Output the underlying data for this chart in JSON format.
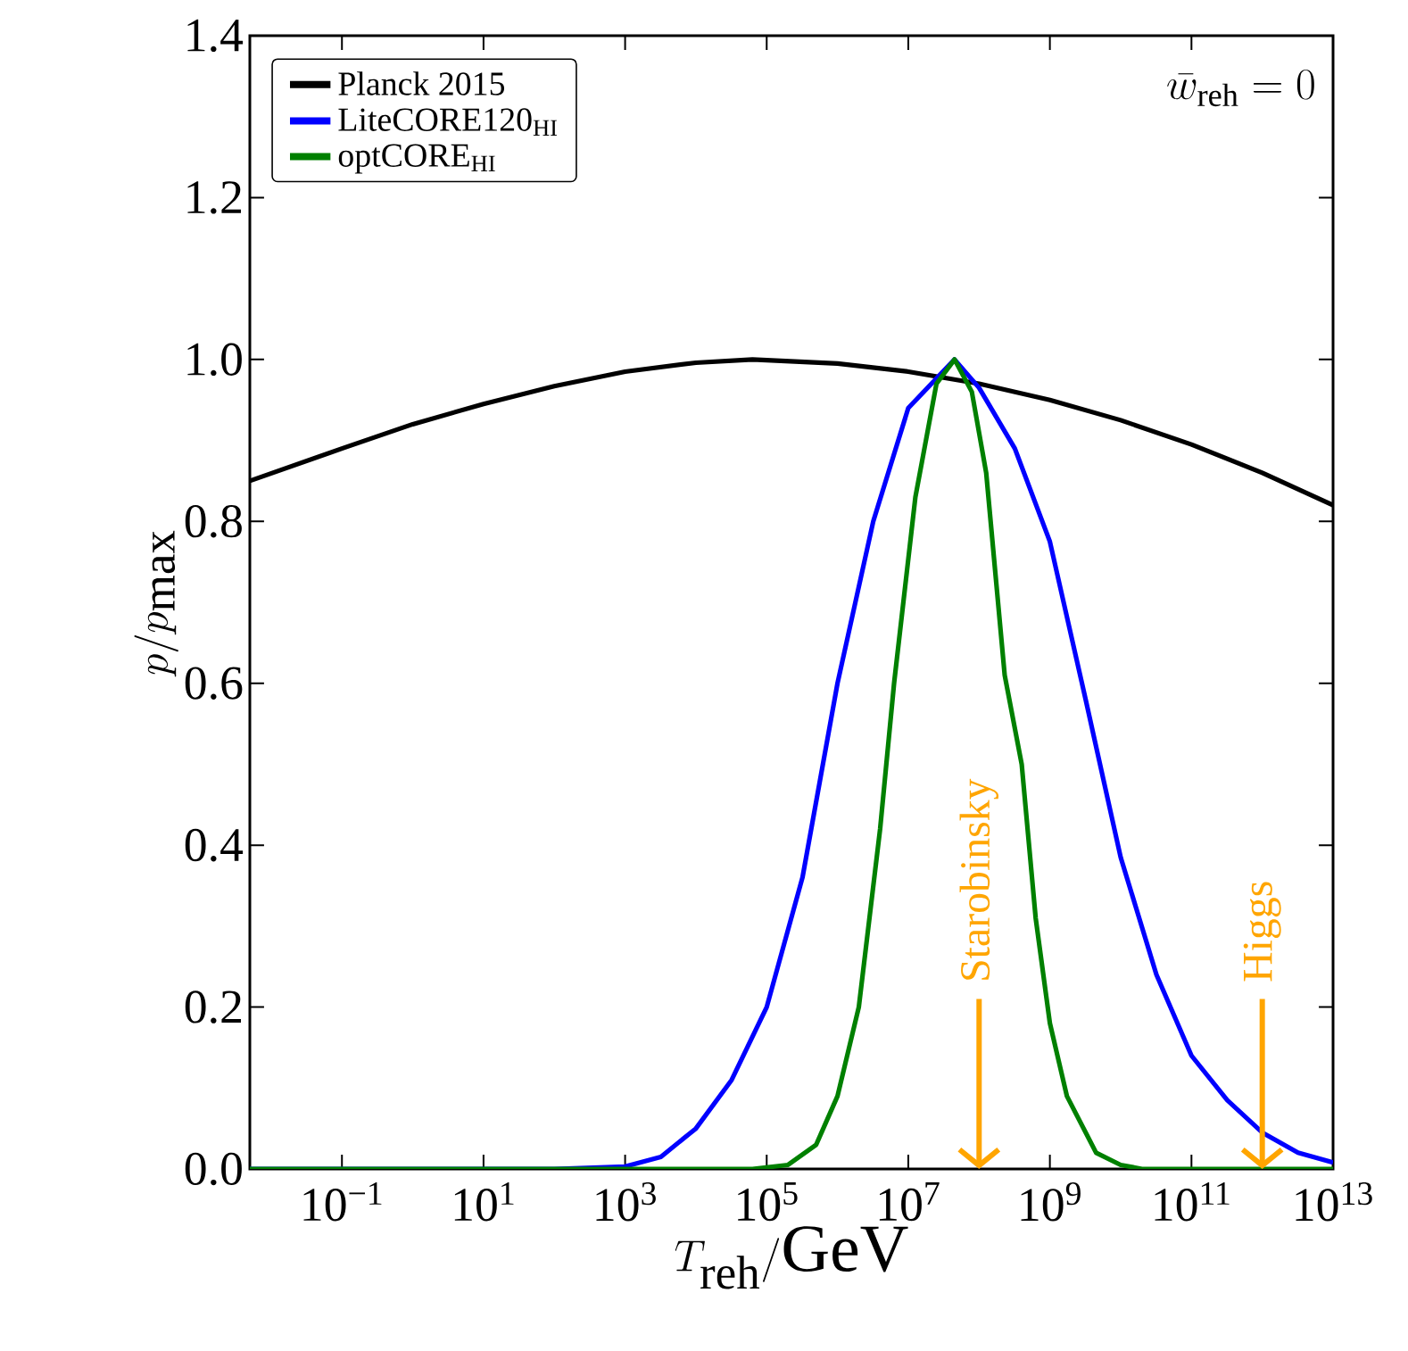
{
  "chart_data": {
    "type": "line",
    "xlabel": "T_{\\mathrm{reh}}/\\mathrm{GeV}",
    "ylabel": "p/p_{\\max}",
    "log": "x",
    "xlim": [
      0.005,
      10000000000000.0
    ],
    "ylim": [
      0,
      1.4
    ],
    "xticks": [
      {
        "value": 0.1,
        "label": "10$^{−1}$"
      },
      {
        "value": 10,
        "label": "10$^{1}$"
      },
      {
        "value": 1000,
        "label": "10$^{3}$"
      },
      {
        "value": 100000.0,
        "label": "10$^{5}$"
      },
      {
        "value": 10000000.0,
        "label": "10$^{7}$"
      },
      {
        "value": 1000000000.0,
        "label": "10$^{9}$"
      },
      {
        "value": 100000000000.0,
        "label": "10$^{11}$"
      },
      {
        "value": 10000000000000.0,
        "label": "10$^{13}$"
      }
    ],
    "yticks": [
      {
        "value": 0,
        "label": "0.0"
      },
      {
        "value": 0.2,
        "label": "0.2"
      },
      {
        "value": 0.4,
        "label": "0.4"
      },
      {
        "value": 0.6,
        "label": "0.6"
      },
      {
        "value": 0.8,
        "label": "0.8"
      },
      {
        "value": 1.0,
        "label": "1.0"
      },
      {
        "value": 1.2,
        "label": "1.2"
      },
      {
        "value": 1.4,
        "label": "1.4"
      }
    ],
    "legend": "top left",
    "marker": "none",
    "line_style": "solid",
    "series": [
      {
        "name": "Planck 2015",
        "color": "#000000",
        "x": [
          0.005,
          0.1,
          1,
          10,
          100,
          1000,
          10000,
          63000,
          1000000.0,
          10000000.0,
          100000000.0,
          1000000000.0,
          10000000000.0,
          100000000000.0,
          1000000000000.0,
          10000000000000.0
        ],
        "values": [
          0.85,
          0.89,
          0.92,
          0.945,
          0.967,
          0.985,
          0.996,
          1.0,
          0.995,
          0.985,
          0.97,
          0.95,
          0.925,
          0.895,
          0.86,
          0.82
        ]
      },
      {
        "name": "LiteCORE120$_{HI}$",
        "color": "#0000ff",
        "x": [
          0.005,
          100,
          1000,
          3200,
          10000,
          32000,
          100000.0,
          320000.0,
          1000000.0,
          3200000.0,
          10000000.0,
          45000000.0,
          100000000.0,
          320000000.0,
          1000000000.0,
          3200000000.0,
          10000000000.0,
          32000000000.0,
          100000000000.0,
          320000000000.0,
          1000000000000.0,
          3200000000000.0,
          10000000000000.0
        ],
        "values": [
          0,
          0,
          0.003,
          0.015,
          0.05,
          0.11,
          0.2,
          0.36,
          0.6,
          0.8,
          0.94,
          1.0,
          0.965,
          0.89,
          0.775,
          0.58,
          0.385,
          0.24,
          0.14,
          0.085,
          0.045,
          0.02,
          0.008
        ]
      },
      {
        "name": "optCORE$_{HI}$",
        "color": "#008000",
        "x": [
          0.005,
          63000,
          200000.0,
          500000.0,
          1000000.0,
          2000000.0,
          4000000.0,
          6300000.0,
          12600000.0,
          25000000.0,
          45000000.0,
          79000000.0,
          126000000.0,
          230000000.0,
          400000000.0,
          630000000.0,
          1000000000.0,
          1740000000.0,
          4500000000.0,
          10000000000.0,
          20000000000.0,
          10000000000000.0
        ],
        "values": [
          0,
          0,
          0.005,
          0.03,
          0.09,
          0.2,
          0.42,
          0.6,
          0.83,
          0.97,
          1.0,
          0.96,
          0.86,
          0.61,
          0.5,
          0.31,
          0.18,
          0.09,
          0.02,
          0.005,
          0,
          0
        ]
      }
    ],
    "ref_lines": [
      {
        "axis": "x",
        "value": 100000000.0,
        "label": "Starobinsky",
        "color": "#ffa500"
      },
      {
        "axis": "x",
        "value": 1000000000000.0,
        "label": "Higgs",
        "color": "#ffa500"
      }
    ],
    "annotations": [
      "\\bar{w}_{\\mathrm{reh}} = 0"
    ]
  }
}
